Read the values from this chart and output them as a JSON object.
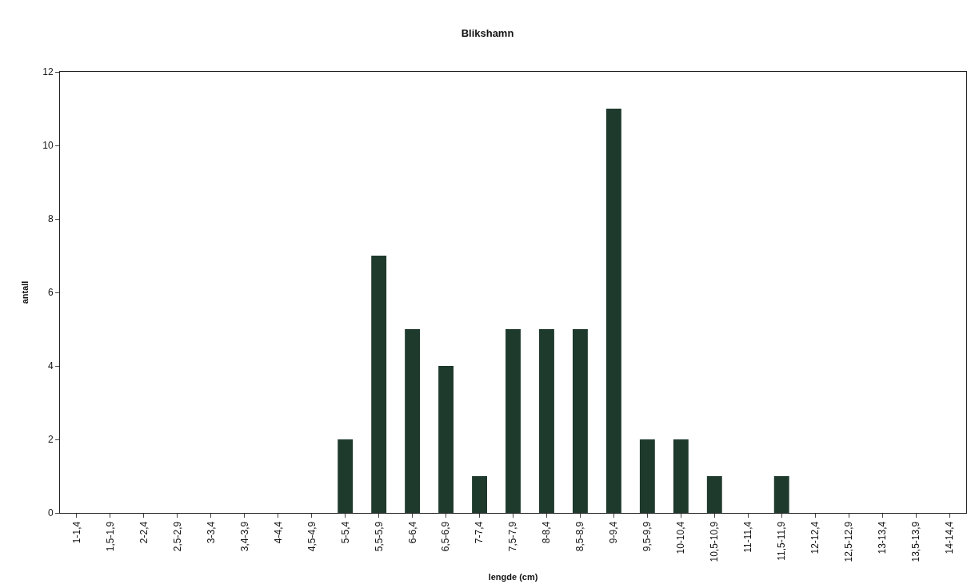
{
  "chart_data": {
    "type": "bar",
    "title": "Blikshamn",
    "xlabel": "lengde (cm)",
    "ylabel": "antall",
    "categories": [
      "1-1,4",
      "1,5-1,9",
      "2-2,4",
      "2,5-2,9",
      "3-3,4",
      "3,4-3,9",
      "4-4,4",
      "4,5-4,9",
      "5-5,4",
      "5,5-5,9",
      "6-6,4",
      "6,5-6,9",
      "7-7,4",
      "7,5-7,9",
      "8-8,4",
      "8,5-8,9",
      "9-9,4",
      "9,5-9,9",
      "10-10,4",
      "10,5-10,9",
      "11-11,4",
      "11,5-11,9",
      "12-12,4",
      "12,5-12,9",
      "13-13,4",
      "13,5-13,9",
      "14-14,4"
    ],
    "values": [
      0,
      0,
      0,
      0,
      0,
      0,
      0,
      0,
      2,
      7,
      5,
      4,
      1,
      5,
      5,
      5,
      11,
      2,
      2,
      1,
      0,
      1,
      0,
      0,
      0,
      0,
      0
    ],
    "color": "#1e3a2c",
    "ylim": [
      0,
      12
    ],
    "yticks": [
      0,
      2,
      4,
      6,
      8,
      10,
      12
    ]
  }
}
